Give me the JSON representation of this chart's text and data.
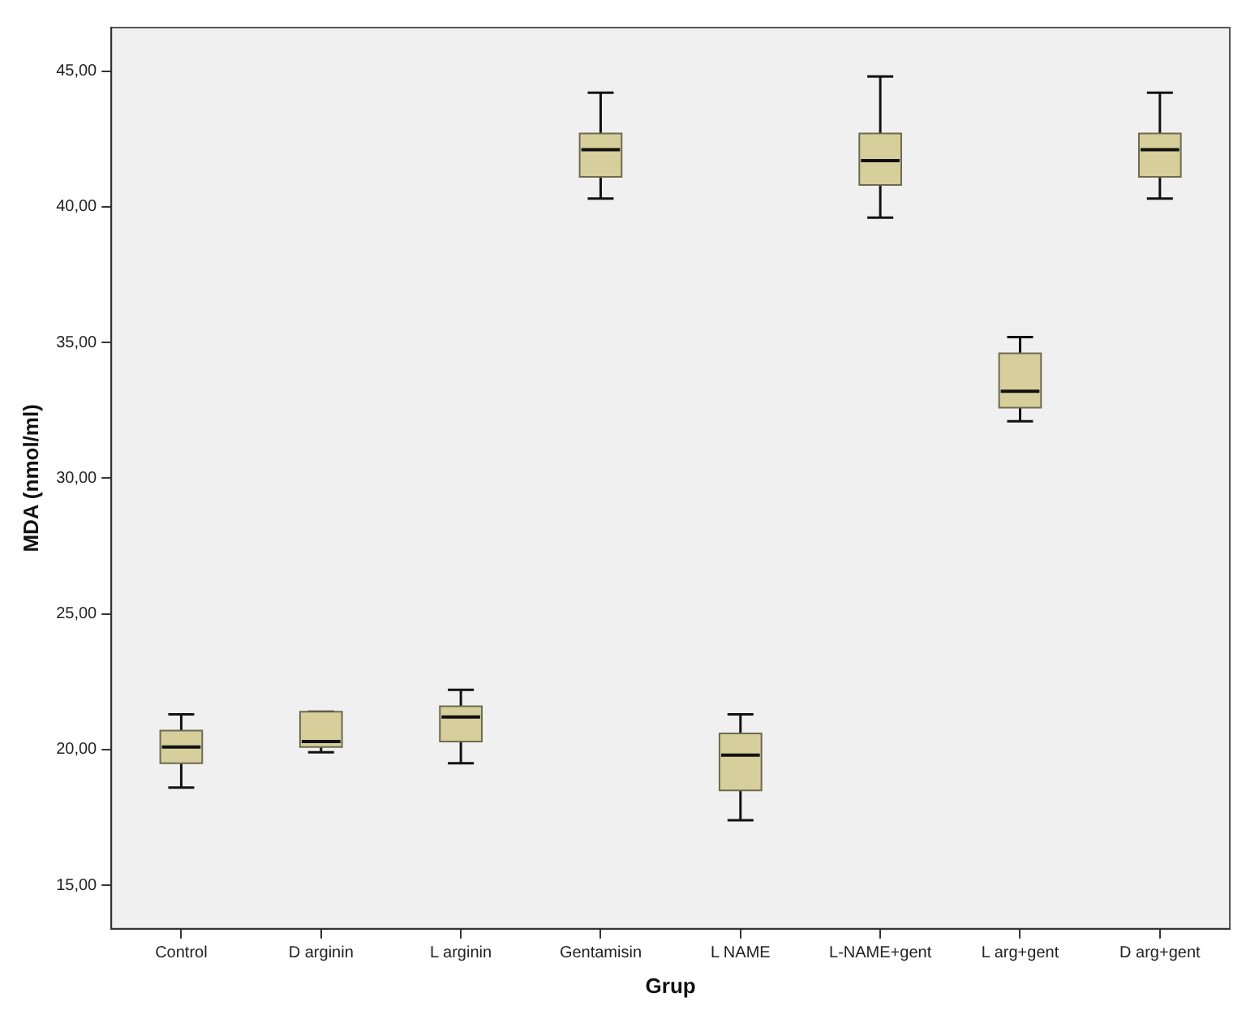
{
  "chart_data": {
    "type": "box",
    "xlabel": "Grup",
    "ylabel": "MDA (nmol/ml)",
    "categories": [
      "Control",
      "D arginin",
      "L arginin",
      "Gentamisin",
      "L NAME",
      "L-NAME+gent",
      "L arg+gent",
      "D arg+gent"
    ],
    "color": "#d6cf9c",
    "boxes": [
      {
        "low": 18.6,
        "q1": 19.5,
        "median": 20.1,
        "q3": 20.7,
        "high": 21.3
      },
      {
        "low": 19.9,
        "q1": 20.1,
        "median": 20.3,
        "q3": 21.4,
        "high": 21.4
      },
      {
        "low": 19.5,
        "q1": 20.3,
        "median": 21.2,
        "q3": 21.6,
        "high": 22.2
      },
      {
        "low": 40.3,
        "q1": 41.1,
        "median": 42.1,
        "q3": 42.7,
        "high": 44.2
      },
      {
        "low": 17.4,
        "q1": 18.5,
        "median": 19.8,
        "q3": 20.6,
        "high": 21.3
      },
      {
        "low": 39.6,
        "q1": 40.8,
        "median": 41.7,
        "q3": 42.7,
        "high": 44.8
      },
      {
        "low": 32.1,
        "q1": 32.6,
        "median": 33.2,
        "q3": 34.6,
        "high": 35.2
      },
      {
        "low": 40.3,
        "q1": 41.1,
        "median": 42.1,
        "q3": 42.7,
        "high": 44.2
      }
    ],
    "ylim": [
      13.4,
      46.6
    ],
    "yticks": [
      {
        "value": 15,
        "label": "15,00"
      },
      {
        "value": 20,
        "label": "20,00"
      },
      {
        "value": 25,
        "label": "25,00"
      },
      {
        "value": 30,
        "label": "30,00"
      },
      {
        "value": 35,
        "label": "35,00"
      },
      {
        "value": 40,
        "label": "40,00"
      },
      {
        "value": 45,
        "label": "45,00"
      }
    ]
  }
}
